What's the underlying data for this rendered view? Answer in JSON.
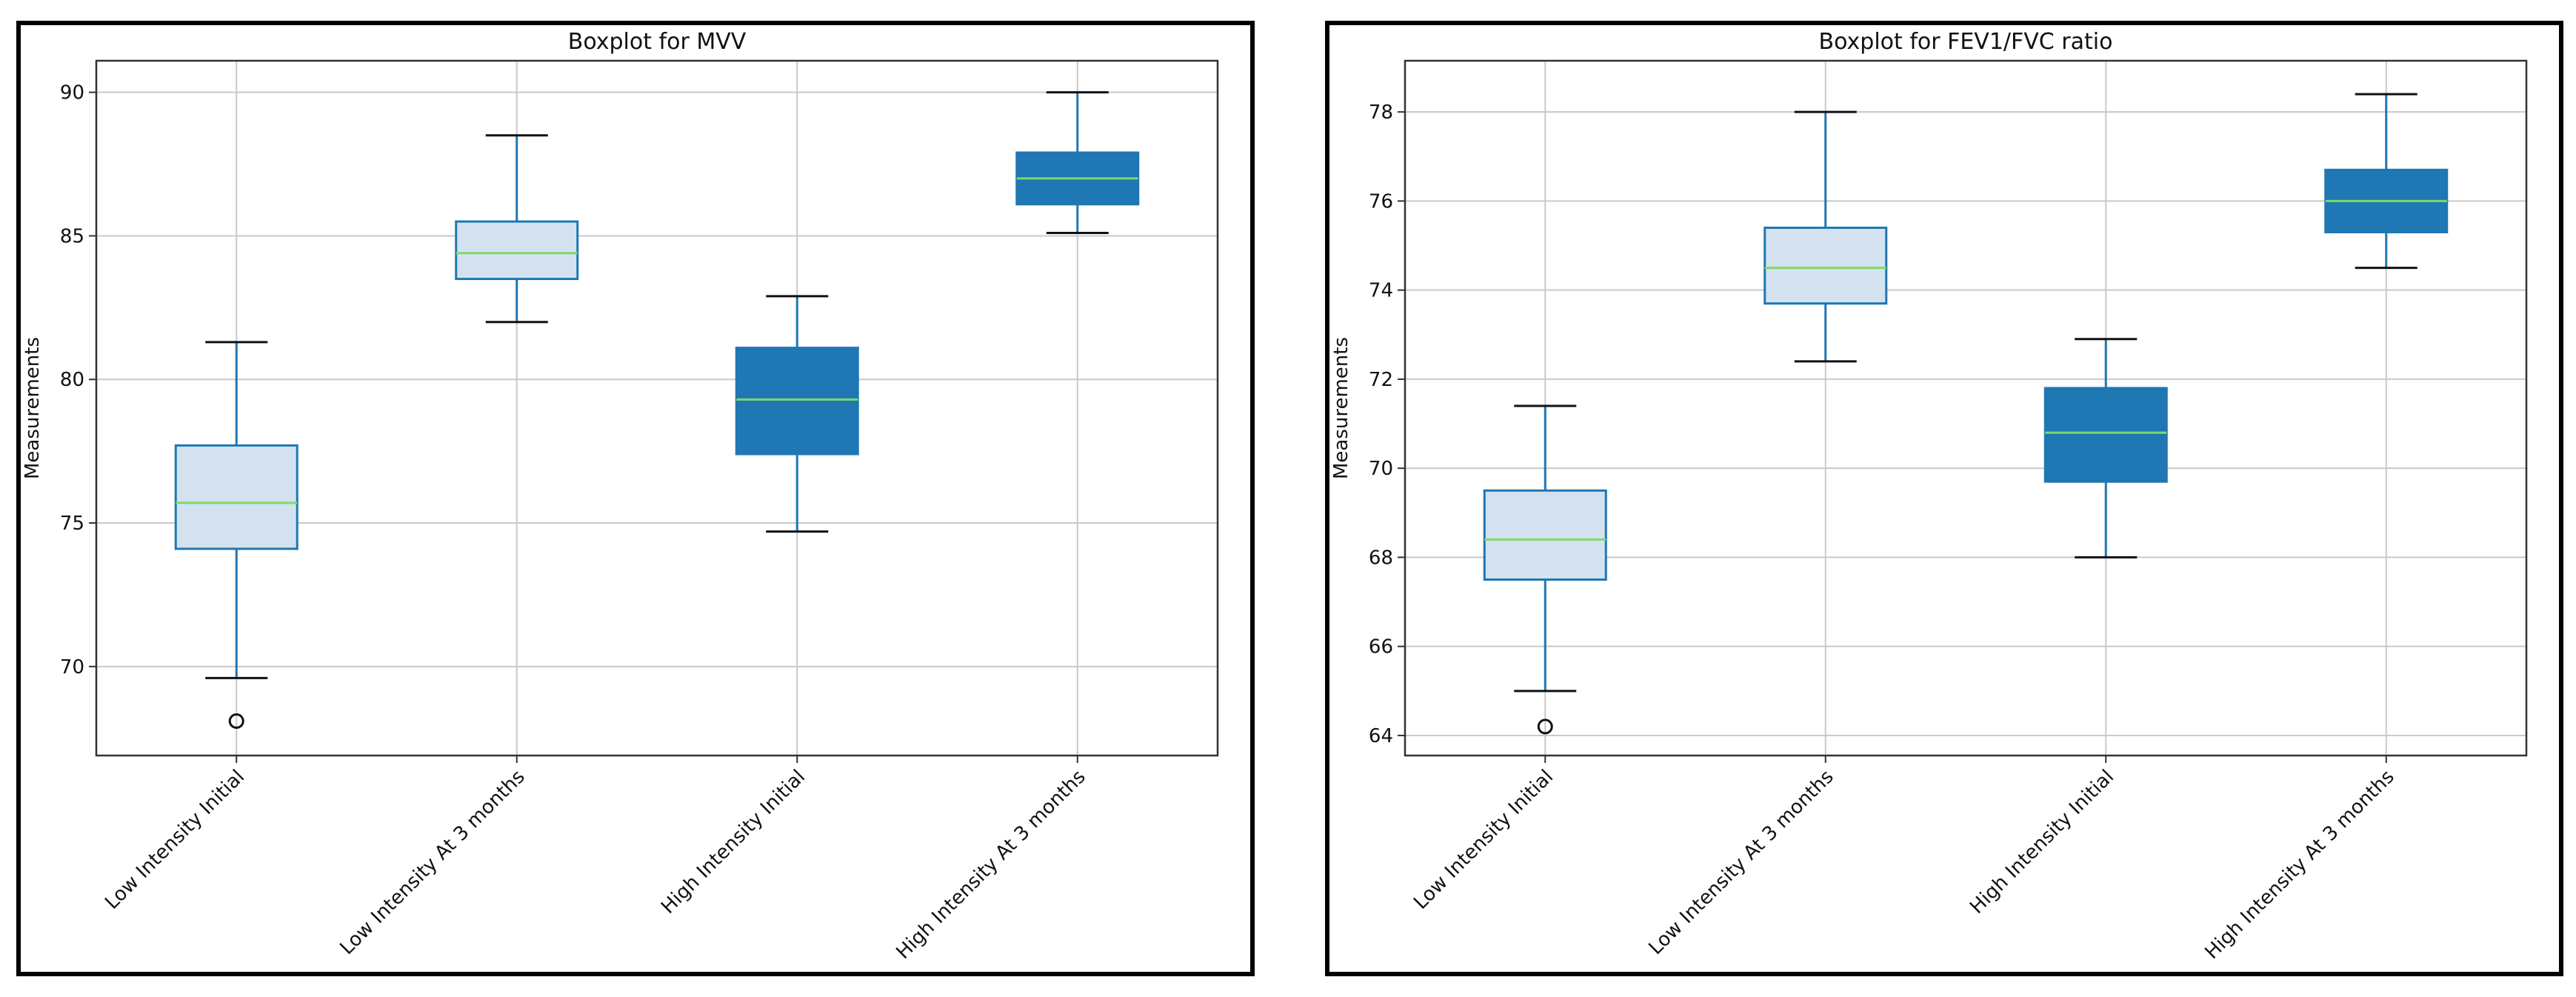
{
  "chart_data": [
    {
      "type": "boxplot",
      "title": "Boxplot for MVV",
      "xlabel": "",
      "ylabel": "Measurements",
      "ylim": [
        66.9,
        91.1
      ],
      "yticks": [
        70,
        75,
        80,
        85,
        90
      ],
      "grid": true,
      "categories": [
        "Low Intensity Initial",
        "Low Intensity At 3 months",
        "High Intensity Initial",
        "High Intensity At 3 months"
      ],
      "boxes": [
        {
          "whisker_low": 69.6,
          "q1": 74.1,
          "median": 75.7,
          "q3": 77.7,
          "whisker_high": 81.3,
          "outliers": [
            68.1
          ],
          "fill": "#d4e2ef"
        },
        {
          "whisker_low": 82.0,
          "q1": 83.5,
          "median": 84.4,
          "q3": 85.5,
          "whisker_high": 88.5,
          "outliers": [],
          "fill": "#d4e2ef"
        },
        {
          "whisker_low": 74.7,
          "q1": 77.4,
          "median": 79.3,
          "q3": 81.1,
          "whisker_high": 82.9,
          "outliers": [],
          "fill": "#1f77b4"
        },
        {
          "whisker_low": 85.1,
          "q1": 86.1,
          "median": 87.0,
          "q3": 87.9,
          "whisker_high": 90.0,
          "outliers": [],
          "fill": "#1f77b4"
        }
      ]
    },
    {
      "type": "boxplot",
      "title": "Boxplot for FEV1/FVC ratio",
      "xlabel": "",
      "ylabel": "Measurements",
      "ylim": [
        63.55,
        79.15
      ],
      "yticks": [
        64,
        66,
        68,
        70,
        72,
        74,
        76,
        78
      ],
      "grid": true,
      "categories": [
        "Low Intensity Initial",
        "Low Intensity At 3 months",
        "High Intensity Initial",
        "High Intensity At 3 months"
      ],
      "boxes": [
        {
          "whisker_low": 65.0,
          "q1": 67.5,
          "median": 68.4,
          "q3": 69.5,
          "whisker_high": 71.4,
          "outliers": [
            64.2
          ],
          "fill": "#d4e2ef"
        },
        {
          "whisker_low": 72.4,
          "q1": 73.7,
          "median": 74.5,
          "q3": 75.4,
          "whisker_high": 78.0,
          "outliers": [],
          "fill": "#d4e2ef"
        },
        {
          "whisker_low": 68.0,
          "q1": 69.7,
          "median": 70.8,
          "q3": 71.8,
          "whisker_high": 72.9,
          "outliers": [],
          "fill": "#1f77b4"
        },
        {
          "whisker_low": 74.5,
          "q1": 75.3,
          "median": 76.0,
          "q3": 76.7,
          "whisker_high": 78.4,
          "outliers": [],
          "fill": "#1f77b4"
        }
      ]
    }
  ],
  "colors": {
    "box_edge": "#1f77b4",
    "median": "#7ed96a",
    "whisker_cap": "#111111",
    "grid": "#c9c9c9",
    "axis": "#333333"
  }
}
